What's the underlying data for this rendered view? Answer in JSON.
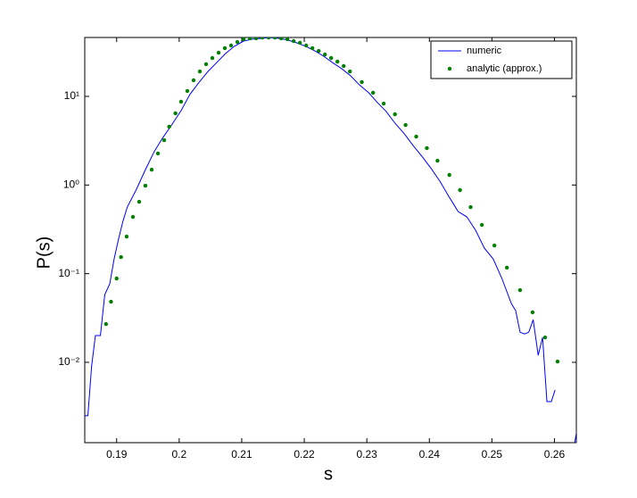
{
  "chart_data": {
    "type": "line",
    "xlabel": "s",
    "ylabel": "P(s)",
    "xlim": [
      0.1849,
      0.2635
    ],
    "ylim": [
      0.00124,
      46.2
    ],
    "yscale": "log",
    "xticks": [
      0.19,
      0.2,
      0.21,
      0.22,
      0.23,
      0.24,
      0.25,
      0.26
    ],
    "yticks": [
      {
        "value": 0.01,
        "label": "10⁻²"
      },
      {
        "value": 0.1,
        "label": "10⁻¹"
      },
      {
        "value": 1,
        "label": "10⁰"
      },
      {
        "value": 10,
        "label": "10¹"
      }
    ],
    "legend": "upper right",
    "series": [
      {
        "name": "numeric",
        "color": "#0000ff",
        "style": "line",
        "x": [
          0.1849,
          0.1854,
          0.186,
          0.1866,
          0.1874,
          0.1881,
          0.1889,
          0.1896,
          0.1903,
          0.191,
          0.1917,
          0.1931,
          0.1946,
          0.196,
          0.1974,
          0.1988,
          0.2003,
          0.2017,
          0.2031,
          0.2046,
          0.206,
          0.2074,
          0.2088,
          0.2103,
          0.2117,
          0.2131,
          0.2145,
          0.216,
          0.2174,
          0.2188,
          0.2203,
          0.2217,
          0.2231,
          0.2245,
          0.226,
          0.2274,
          0.2288,
          0.2303,
          0.2317,
          0.2331,
          0.2345,
          0.236,
          0.2374,
          0.2388,
          0.2403,
          0.2417,
          0.2431,
          0.2446,
          0.246,
          0.2474,
          0.2488,
          0.2502,
          0.2516,
          0.2531,
          0.2538,
          0.2545,
          0.2552,
          0.2559,
          0.2566,
          0.2574,
          0.2581,
          0.2588,
          0.2595,
          0.2601,
          0.2615,
          0.263,
          0.264
        ],
        "values": [
          0.0025,
          0.0025,
          0.0091,
          0.02,
          0.02,
          0.058,
          0.077,
          0.147,
          0.245,
          0.389,
          0.564,
          0.877,
          1.49,
          2.38,
          3.44,
          4.76,
          6.9,
          10.5,
          14.2,
          19.1,
          24.1,
          30.4,
          36.6,
          42.1,
          44.2,
          45.2,
          46.1,
          45.2,
          43.1,
          40.2,
          36.6,
          32.6,
          28.4,
          24.1,
          20.5,
          17.1,
          13.5,
          11.0,
          8.51,
          6.75,
          4.99,
          3.78,
          2.79,
          2.11,
          1.53,
          1.1,
          0.745,
          0.502,
          0.437,
          0.308,
          0.194,
          0.147,
          0.0883,
          0.0461,
          0.0383,
          0.0219,
          0.0209,
          0.0219,
          0.0303,
          0.012,
          0.0191,
          0.0036,
          0.0036,
          0.00486,
          null,
          0.001,
          0.0025
        ]
      },
      {
        "name": "analytic (approx.)",
        "color": "#008000",
        "style": "markers",
        "x": [
          0.1883,
          0.1891,
          0.19,
          0.1907,
          0.1916,
          0.1926,
          0.1936,
          0.1946,
          0.1956,
          0.1966,
          0.1976,
          0.1984,
          0.1994,
          0.2003,
          0.2013,
          0.2023,
          0.2033,
          0.2043,
          0.2053,
          0.2063,
          0.2073,
          0.2083,
          0.2093,
          0.2103,
          0.2113,
          0.2123,
          0.2133,
          0.2143,
          0.2153,
          0.2163,
          0.2173,
          0.2183,
          0.2193,
          0.2203,
          0.2213,
          0.2223,
          0.2233,
          0.2243,
          0.2253,
          0.2263,
          0.2273,
          0.2292,
          0.231,
          0.2327,
          0.2345,
          0.2362,
          0.2379,
          0.2396,
          0.2413,
          0.2432,
          0.2449,
          0.2466,
          0.2484,
          0.2504,
          0.2524,
          0.2545,
          0.2565,
          0.2585,
          0.2605
        ],
        "values": [
          0.027,
          0.0483,
          0.0883,
          0.154,
          0.262,
          0.437,
          0.648,
          0.984,
          1.49,
          2.27,
          3.21,
          4.55,
          6.44,
          8.71,
          11.5,
          15.2,
          19.1,
          23.1,
          27.1,
          31.1,
          35.0,
          37.5,
          41.1,
          44.2,
          45.2,
          45.2,
          46.1,
          46.1,
          46.1,
          45.2,
          44.2,
          42.1,
          40.2,
          37.5,
          35.0,
          32.6,
          29.7,
          27.1,
          24.7,
          22.0,
          19.1,
          14.5,
          11.0,
          8.3,
          6.29,
          4.76,
          3.52,
          2.61,
          1.88,
          1.3,
          0.877,
          0.564,
          0.355,
          0.208,
          0.117,
          0.0653,
          0.0366,
          0.0191,
          0.0102
        ]
      }
    ]
  }
}
